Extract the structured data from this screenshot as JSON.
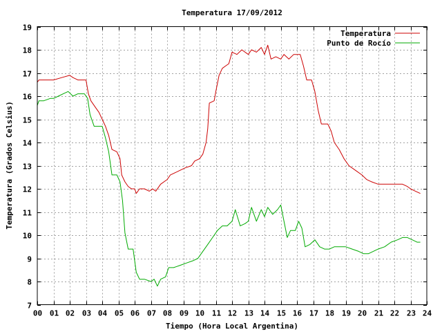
{
  "chart_data": {
    "type": "line",
    "title": "Temperatura 17/09/2012",
    "xlabel": "Tiempo (Hora Local Argentina)",
    "ylabel": "Temperatura (Grados Celsius)",
    "xlim": [
      0,
      24
    ],
    "ylim": [
      7,
      19
    ],
    "x_ticks": [
      "00",
      "01",
      "02",
      "03",
      "04",
      "05",
      "06",
      "07",
      "08",
      "09",
      "10",
      "11",
      "12",
      "13",
      "14",
      "15",
      "16",
      "17",
      "18",
      "19",
      "20",
      "21",
      "22",
      "23",
      "24"
    ],
    "y_ticks": [
      "7",
      "8",
      "9",
      "10",
      "11",
      "12",
      "13",
      "14",
      "15",
      "16",
      "17",
      "18",
      "19"
    ],
    "grid": true,
    "legend_position": "top-right",
    "series": [
      {
        "name": "Temperatura",
        "color": "#cc0000",
        "points": [
          [
            0.0,
            16.6
          ],
          [
            0.1,
            16.7
          ],
          [
            0.5,
            16.7
          ],
          [
            1.0,
            16.7
          ],
          [
            1.5,
            16.8
          ],
          [
            2.0,
            16.9
          ],
          [
            2.2,
            16.8
          ],
          [
            2.5,
            16.7
          ],
          [
            3.0,
            16.7
          ],
          [
            3.15,
            16.1
          ],
          [
            3.3,
            15.8
          ],
          [
            3.6,
            15.5
          ],
          [
            3.8,
            15.3
          ],
          [
            4.0,
            15.0
          ],
          [
            4.2,
            14.7
          ],
          [
            4.4,
            14.3
          ],
          [
            4.6,
            13.7
          ],
          [
            4.9,
            13.6
          ],
          [
            5.1,
            13.3
          ],
          [
            5.2,
            12.6
          ],
          [
            5.4,
            12.3
          ],
          [
            5.6,
            12.1
          ],
          [
            5.8,
            12.0
          ],
          [
            6.0,
            12.0
          ],
          [
            6.1,
            11.8
          ],
          [
            6.3,
            12.0
          ],
          [
            6.6,
            12.0
          ],
          [
            6.9,
            11.9
          ],
          [
            7.1,
            12.0
          ],
          [
            7.3,
            11.9
          ],
          [
            7.6,
            12.2
          ],
          [
            8.0,
            12.4
          ],
          [
            8.2,
            12.6
          ],
          [
            8.5,
            12.7
          ],
          [
            8.8,
            12.8
          ],
          [
            9.1,
            12.9
          ],
          [
            9.5,
            13.0
          ],
          [
            9.7,
            13.2
          ],
          [
            10.0,
            13.3
          ],
          [
            10.2,
            13.5
          ],
          [
            10.4,
            14.0
          ],
          [
            10.5,
            14.6
          ],
          [
            10.6,
            15.7
          ],
          [
            10.9,
            15.8
          ],
          [
            11.0,
            16.2
          ],
          [
            11.2,
            16.9
          ],
          [
            11.4,
            17.2
          ],
          [
            11.6,
            17.3
          ],
          [
            11.8,
            17.4
          ],
          [
            12.0,
            17.9
          ],
          [
            12.3,
            17.8
          ],
          [
            12.6,
            18.0
          ],
          [
            13.0,
            17.8
          ],
          [
            13.2,
            18.0
          ],
          [
            13.5,
            17.9
          ],
          [
            13.8,
            18.1
          ],
          [
            14.0,
            17.8
          ],
          [
            14.2,
            18.2
          ],
          [
            14.4,
            17.6
          ],
          [
            14.7,
            17.7
          ],
          [
            15.0,
            17.6
          ],
          [
            15.2,
            17.8
          ],
          [
            15.5,
            17.6
          ],
          [
            15.8,
            17.8
          ],
          [
            16.2,
            17.8
          ],
          [
            16.4,
            17.3
          ],
          [
            16.6,
            16.7
          ],
          [
            16.9,
            16.7
          ],
          [
            17.1,
            16.2
          ],
          [
            17.3,
            15.4
          ],
          [
            17.5,
            14.8
          ],
          [
            17.9,
            14.8
          ],
          [
            18.1,
            14.5
          ],
          [
            18.3,
            14.0
          ],
          [
            18.6,
            13.7
          ],
          [
            18.9,
            13.3
          ],
          [
            19.2,
            13.0
          ],
          [
            19.6,
            12.8
          ],
          [
            20.0,
            12.6
          ],
          [
            20.3,
            12.4
          ],
          [
            20.6,
            12.3
          ],
          [
            21.0,
            12.2
          ],
          [
            22.0,
            12.2
          ],
          [
            22.5,
            12.2
          ],
          [
            22.8,
            12.1
          ],
          [
            23.0,
            12.0
          ],
          [
            23.3,
            11.9
          ],
          [
            23.6,
            11.8
          ]
        ]
      },
      {
        "name": "Punto de Rocío",
        "color": "#00aa00",
        "points": [
          [
            0.0,
            15.6
          ],
          [
            0.1,
            15.8
          ],
          [
            0.4,
            15.8
          ],
          [
            0.8,
            15.9
          ],
          [
            1.0,
            15.9
          ],
          [
            1.3,
            16.0
          ],
          [
            1.6,
            16.1
          ],
          [
            1.9,
            16.2
          ],
          [
            2.2,
            16.0
          ],
          [
            2.5,
            16.1
          ],
          [
            2.9,
            16.1
          ],
          [
            3.1,
            15.9
          ],
          [
            3.25,
            15.2
          ],
          [
            3.5,
            14.7
          ],
          [
            4.0,
            14.7
          ],
          [
            4.2,
            14.2
          ],
          [
            4.4,
            13.6
          ],
          [
            4.6,
            12.6
          ],
          [
            4.9,
            12.6
          ],
          [
            5.1,
            12.3
          ],
          [
            5.25,
            11.5
          ],
          [
            5.4,
            10.1
          ],
          [
            5.6,
            9.4
          ],
          [
            5.9,
            9.4
          ],
          [
            6.1,
            8.4
          ],
          [
            6.3,
            8.1
          ],
          [
            6.6,
            8.1
          ],
          [
            7.0,
            8.0
          ],
          [
            7.2,
            8.1
          ],
          [
            7.4,
            7.8
          ],
          [
            7.6,
            8.1
          ],
          [
            7.9,
            8.2
          ],
          [
            8.1,
            8.6
          ],
          [
            8.4,
            8.6
          ],
          [
            8.8,
            8.7
          ],
          [
            9.2,
            8.8
          ],
          [
            9.6,
            8.9
          ],
          [
            9.9,
            9.0
          ],
          [
            10.2,
            9.3
          ],
          [
            10.5,
            9.6
          ],
          [
            10.8,
            9.9
          ],
          [
            11.1,
            10.2
          ],
          [
            11.4,
            10.4
          ],
          [
            11.7,
            10.4
          ],
          [
            12.0,
            10.6
          ],
          [
            12.2,
            11.1
          ],
          [
            12.5,
            10.4
          ],
          [
            12.8,
            10.5
          ],
          [
            13.0,
            10.6
          ],
          [
            13.2,
            11.2
          ],
          [
            13.5,
            10.6
          ],
          [
            13.8,
            11.1
          ],
          [
            14.0,
            10.8
          ],
          [
            14.2,
            11.2
          ],
          [
            14.5,
            10.9
          ],
          [
            14.8,
            11.1
          ],
          [
            15.0,
            11.3
          ],
          [
            15.2,
            10.6
          ],
          [
            15.4,
            9.9
          ],
          [
            15.6,
            10.2
          ],
          [
            15.9,
            10.2
          ],
          [
            16.1,
            10.6
          ],
          [
            16.3,
            10.3
          ],
          [
            16.5,
            9.5
          ],
          [
            16.8,
            9.6
          ],
          [
            17.1,
            9.8
          ],
          [
            17.4,
            9.5
          ],
          [
            17.7,
            9.4
          ],
          [
            18.0,
            9.4
          ],
          [
            18.3,
            9.5
          ],
          [
            18.6,
            9.5
          ],
          [
            19.0,
            9.5
          ],
          [
            19.4,
            9.4
          ],
          [
            19.8,
            9.3
          ],
          [
            20.1,
            9.2
          ],
          [
            20.4,
            9.2
          ],
          [
            20.7,
            9.3
          ],
          [
            21.0,
            9.4
          ],
          [
            21.4,
            9.5
          ],
          [
            21.8,
            9.7
          ],
          [
            22.2,
            9.8
          ],
          [
            22.5,
            9.9
          ],
          [
            22.8,
            9.9
          ],
          [
            23.1,
            9.8
          ],
          [
            23.4,
            9.7
          ],
          [
            23.6,
            9.7
          ]
        ]
      }
    ]
  }
}
